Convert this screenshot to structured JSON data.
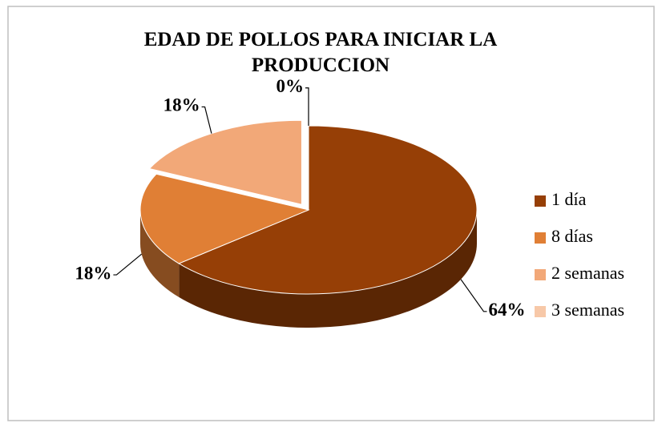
{
  "chart_data": {
    "type": "pie3d",
    "title": "EDAD DE POLLOS PARA INICIAR LA PRODUCCION",
    "categories": [
      "1 día",
      "8 días",
      "2 semanas",
      "3 semanas"
    ],
    "values": [
      64,
      18,
      18,
      0
    ],
    "value_labels": [
      "64%",
      "18%",
      "18%",
      "0%"
    ],
    "colors": [
      "#963f06",
      "#e07f35",
      "#f2a878",
      "#f7c8a8"
    ],
    "exploded": [
      false,
      false,
      true,
      false
    ],
    "legend": "right"
  }
}
